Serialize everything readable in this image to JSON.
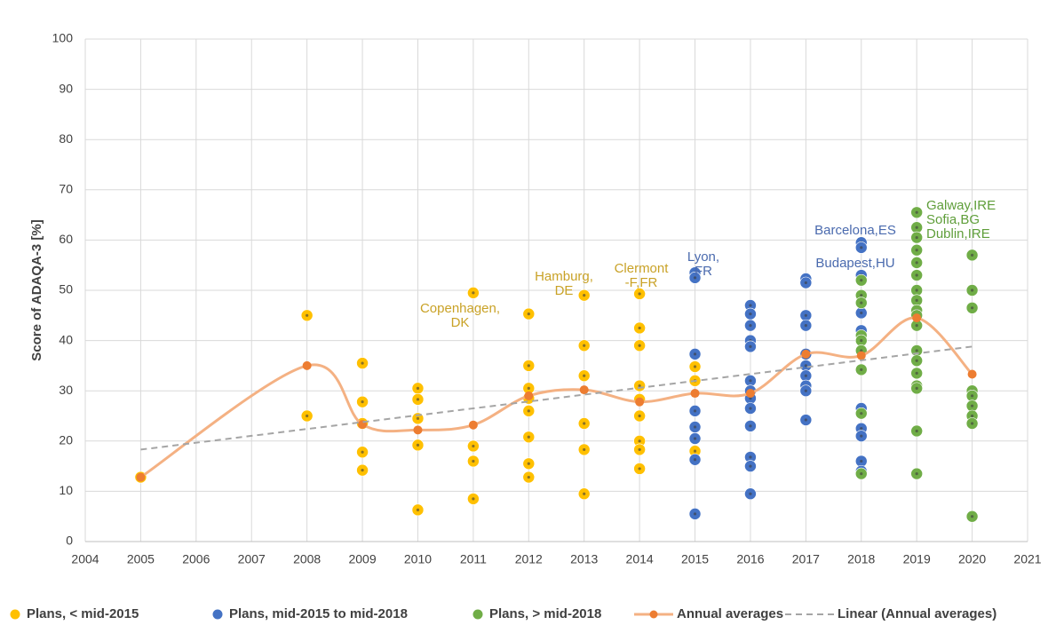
{
  "chart_data": {
    "type": "scatter",
    "y_label": "Score of  ADAQA-3  [%]",
    "xlim": [
      2004,
      2021
    ],
    "xticks": [
      2004,
      2005,
      2006,
      2007,
      2008,
      2009,
      2010,
      2011,
      2012,
      2013,
      2014,
      2015,
      2016,
      2017,
      2018,
      2019,
      2020,
      2021
    ],
    "ylim": [
      0,
      100
    ],
    "yticks": [
      0,
      10,
      20,
      30,
      40,
      50,
      60,
      70,
      80,
      90,
      100
    ],
    "grid": true,
    "legend": "bottom",
    "series": [
      {
        "name": "Plans, < mid-2015",
        "type": "scatter",
        "color": "#ffc000",
        "x": [
          2005,
          2008,
          2008,
          2009,
          2009,
          2009,
          2009,
          2009,
          2010,
          2010,
          2010,
          2010,
          2010,
          2011,
          2011,
          2011,
          2011,
          2012,
          2012,
          2012,
          2012,
          2012,
          2012,
          2012,
          2012,
          2013,
          2013,
          2013,
          2013,
          2013,
          2013,
          2014,
          2014,
          2014,
          2014,
          2014,
          2014,
          2014,
          2014,
          2014,
          2015,
          2015,
          2015
        ],
        "values": [
          12.8,
          45,
          25,
          35.5,
          27.8,
          23.5,
          17.8,
          14.2,
          30.5,
          28.3,
          24.5,
          19.2,
          6.3,
          49.5,
          19,
          16,
          8.5,
          45.3,
          35,
          30.5,
          28.5,
          26,
          20.8,
          15.5,
          12.8,
          49,
          39,
          33,
          23.5,
          18.3,
          9.5,
          49.3,
          42.5,
          39,
          31,
          28.3,
          25,
          20,
          18.3,
          14.5,
          34.8,
          32,
          18
        ]
      },
      {
        "name": "Plans, mid-2015 to mid-2018",
        "type": "scatter",
        "color": "#4472c4",
        "x": [
          2015,
          2015,
          2015,
          2015,
          2015,
          2015,
          2015,
          2015,
          2016,
          2016,
          2016,
          2016,
          2016,
          2016,
          2016,
          2016,
          2016,
          2016,
          2016,
          2016,
          2016,
          2017,
          2017,
          2017,
          2017,
          2017,
          2017,
          2017,
          2017,
          2017,
          2017,
          2018,
          2018,
          2018,
          2018,
          2018,
          2018,
          2018,
          2018,
          2018,
          2018,
          2018
        ],
        "values": [
          53.5,
          52.5,
          37.3,
          26,
          22.8,
          20.5,
          16.3,
          5.5,
          47,
          45.3,
          43,
          40,
          38.8,
          32,
          30,
          28.5,
          26.5,
          23,
          16.8,
          15,
          9.5,
          52.3,
          51.5,
          45,
          43,
          37.3,
          35,
          33,
          31,
          30,
          24.2,
          59.5,
          58.5,
          53,
          45.5,
          42,
          40,
          26.5,
          22.5,
          21,
          16,
          14
        ]
      },
      {
        "name": "Plans, > mid-2018",
        "type": "scatter",
        "color": "#70ad47",
        "x": [
          2018,
          2018,
          2018,
          2018,
          2018,
          2018,
          2018,
          2018,
          2018,
          2019,
          2019,
          2019,
          2019,
          2019,
          2019,
          2019,
          2019,
          2019,
          2019,
          2019,
          2019,
          2019,
          2019,
          2019,
          2019,
          2019,
          2019,
          2020,
          2020,
          2020,
          2020,
          2020,
          2020,
          2020,
          2020,
          2020
        ],
        "values": [
          52,
          49,
          47.5,
          41,
          40,
          38,
          34.2,
          25.5,
          13.5,
          65.5,
          62.5,
          60.5,
          58,
          55.5,
          53,
          50,
          48,
          46,
          45,
          43,
          38,
          36,
          33.5,
          31,
          30.5,
          22,
          13.5,
          57,
          50,
          46.5,
          30,
          29,
          27,
          25,
          23.5,
          5
        ]
      },
      {
        "name": "Annual averages",
        "type": "line",
        "smooth": true,
        "color": "#ed7d31",
        "x": [
          2005,
          2008,
          2009,
          2010,
          2011,
          2012,
          2013,
          2014,
          2015,
          2016,
          2017,
          2018,
          2019,
          2020
        ],
        "values": [
          12.8,
          35,
          23.3,
          22.2,
          23.2,
          29,
          30.2,
          27.8,
          29.5,
          29.5,
          37.3,
          37,
          44.5,
          33.3
        ]
      },
      {
        "name": "Linear (Annual averages)",
        "type": "line",
        "dashed": true,
        "color": "#a5a5a5",
        "x": [
          2005,
          2020
        ],
        "values": [
          18.3,
          38.8
        ]
      }
    ],
    "annotations": [
      {
        "lines": [
          "Copenhagen,",
          "DK"
        ],
        "color": "#c9a227"
      },
      {
        "lines": [
          "Hamburg,",
          "DE"
        ],
        "color": "#c9a227"
      },
      {
        "lines": [
          "Clermont",
          "-F,FR"
        ],
        "color": "#c9a227"
      },
      {
        "lines": [
          "Lyon,",
          "FR"
        ],
        "color": "#4a6aae"
      },
      {
        "lines": [
          "Barcelona,ES"
        ],
        "color": "#4a6aae"
      },
      {
        "lines": [
          "Budapest,HU"
        ],
        "color": "#4a6aae"
      },
      {
        "lines": [
          "Galway,IRE",
          "Sofia,BG",
          "Dublin,IRE"
        ],
        "color": "#5f9e3a"
      }
    ]
  }
}
